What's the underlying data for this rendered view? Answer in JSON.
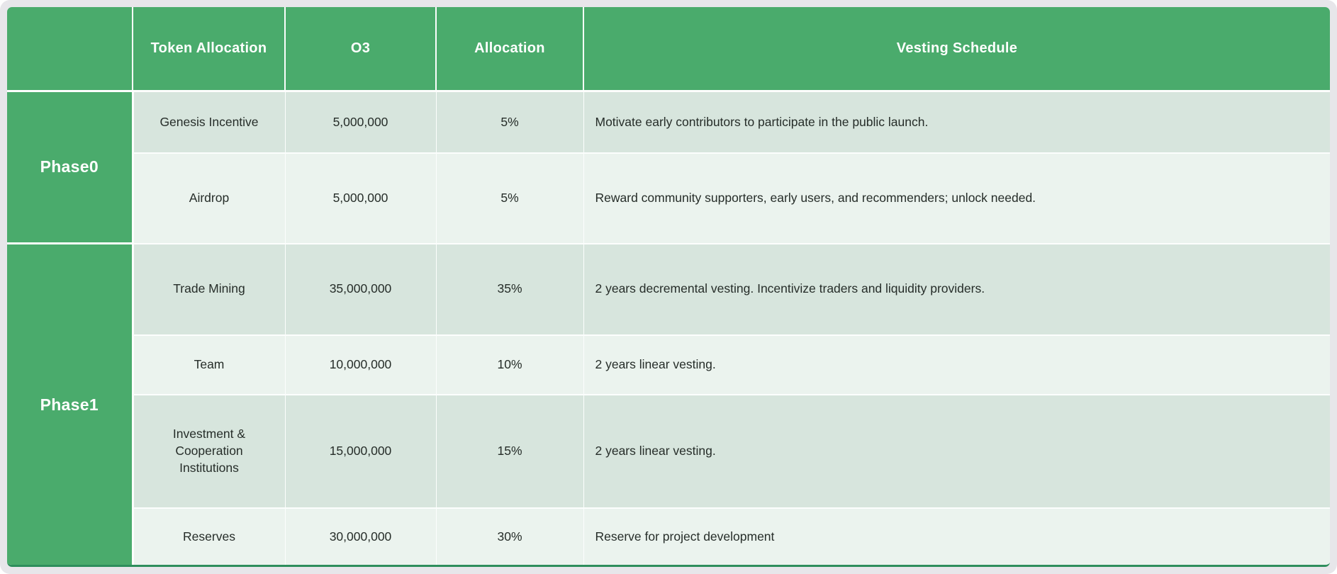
{
  "colors": {
    "green": "#4aab6c",
    "row_dark": "#d7e5dd",
    "row_light": "#ebf3ee",
    "bottom_border": "#2e8e5c",
    "page_bg": "#e7e6ea",
    "header_text": "#ffffff",
    "body_text": "#262d29"
  },
  "header": {
    "phase": "",
    "token_allocation": "Token Allocation",
    "o3": "O3",
    "allocation": "Allocation",
    "vesting_schedule": "Vesting Schedule"
  },
  "phases": [
    {
      "label": "Phase0",
      "rows": [
        {
          "token": "Genesis Incentive",
          "amount": "5,000,000",
          "percent": "5%",
          "vesting": "Motivate early contributors to participate in the public launch."
        },
        {
          "token": "Airdrop",
          "amount": "5,000,000",
          "percent": "5%",
          "vesting": "Reward community supporters, early users, and recommenders; unlock needed."
        }
      ]
    },
    {
      "label": "Phase1",
      "rows": [
        {
          "token": "Trade Mining",
          "amount": "35,000,000",
          "percent": "35%",
          "vesting": "2 years decremental vesting. Incentivize traders and liquidity providers."
        },
        {
          "token": "Team",
          "amount": "10,000,000",
          "percent": "10%",
          "vesting": "2 years linear vesting."
        },
        {
          "token": "Investment & Cooperation Institutions",
          "amount": "15,000,000",
          "percent": "15%",
          "vesting": "2 years linear vesting."
        },
        {
          "token": "Reserves",
          "amount": "30,000,000",
          "percent": "30%",
          "vesting": "Reserve for project development"
        }
      ]
    }
  ]
}
